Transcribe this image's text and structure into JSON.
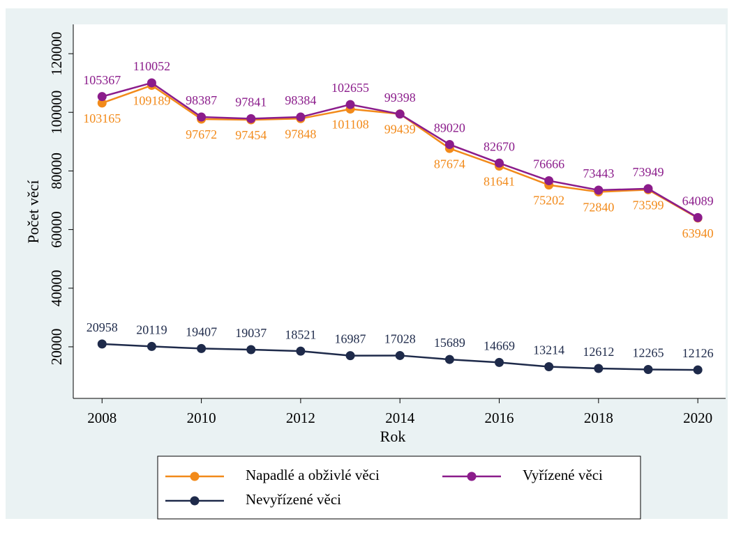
{
  "chart_data": {
    "type": "line",
    "x": [
      2008,
      2009,
      2010,
      2011,
      2012,
      2013,
      2014,
      2015,
      2016,
      2017,
      2018,
      2019,
      2020
    ],
    "series": [
      {
        "name": "Napadlé a obživlé věci",
        "color": "#f28a1a",
        "label_position": "below",
        "values": [
          103165,
          109189,
          97672,
          97454,
          97848,
          101108,
          99439,
          87674,
          81641,
          75202,
          72840,
          73599,
          63940
        ]
      },
      {
        "name": "Vyřízené věci",
        "color": "#8b1c8b",
        "label_position": "above",
        "values": [
          105367,
          110052,
          98387,
          97841,
          98384,
          102655,
          99398,
          89020,
          82670,
          76666,
          73443,
          73949,
          64089
        ]
      },
      {
        "name": "Nevyřízené věci",
        "color": "#1e2a4a",
        "label_position": "above",
        "values": [
          20958,
          20119,
          19407,
          19037,
          18521,
          16987,
          17028,
          15689,
          14669,
          13214,
          12612,
          12265,
          12126
        ]
      }
    ],
    "x_label": "Rok",
    "y_label": "Počet věcí",
    "xlim": [
      2007.42,
      2020.56
    ],
    "xticks": [
      2008,
      2010,
      2012,
      2014,
      2016,
      2018,
      2020
    ],
    "ylim": [
      2400,
      130000
    ],
    "yticks": [
      20000,
      40000,
      60000,
      80000,
      100000,
      120000
    ],
    "grid": false,
    "legend": "bottom"
  }
}
